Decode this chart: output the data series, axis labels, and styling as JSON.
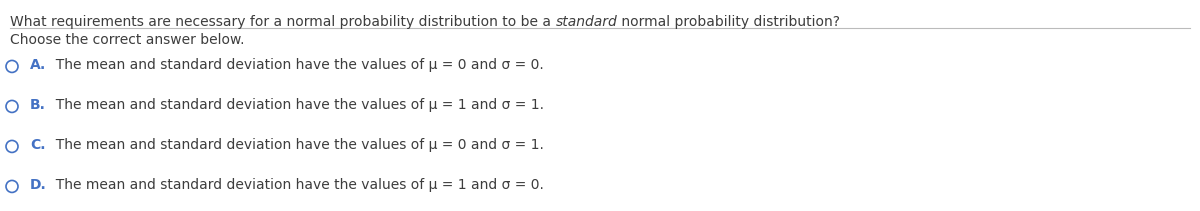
{
  "question_part1": "What requirements are necessary for a normal probability distribution to be a ",
  "question_italic": "standard",
  "question_part2": " normal probability distribution?",
  "sub_heading": "Choose the correct answer below.",
  "options": [
    {
      "letter": "A.",
      "text": "  The mean and standard deviation have the values of μ = 0 and σ = 0."
    },
    {
      "letter": "B.",
      "text": "  The mean and standard deviation have the values of μ = 1 and σ = 1."
    },
    {
      "letter": "C.",
      "text": "  The mean and standard deviation have the values of μ = 0 and σ = 1."
    },
    {
      "letter": "D.",
      "text": "  The mean and standard deviation have the values of μ = 1 and σ = 0."
    }
  ],
  "bg_color": "#ffffff",
  "text_color": "#3d3d3d",
  "option_color": "#4472c4",
  "question_fontsize": 10,
  "option_fontsize": 10,
  "line_color": "#bbbbbb",
  "fig_width": 12.0,
  "fig_height": 2.11
}
